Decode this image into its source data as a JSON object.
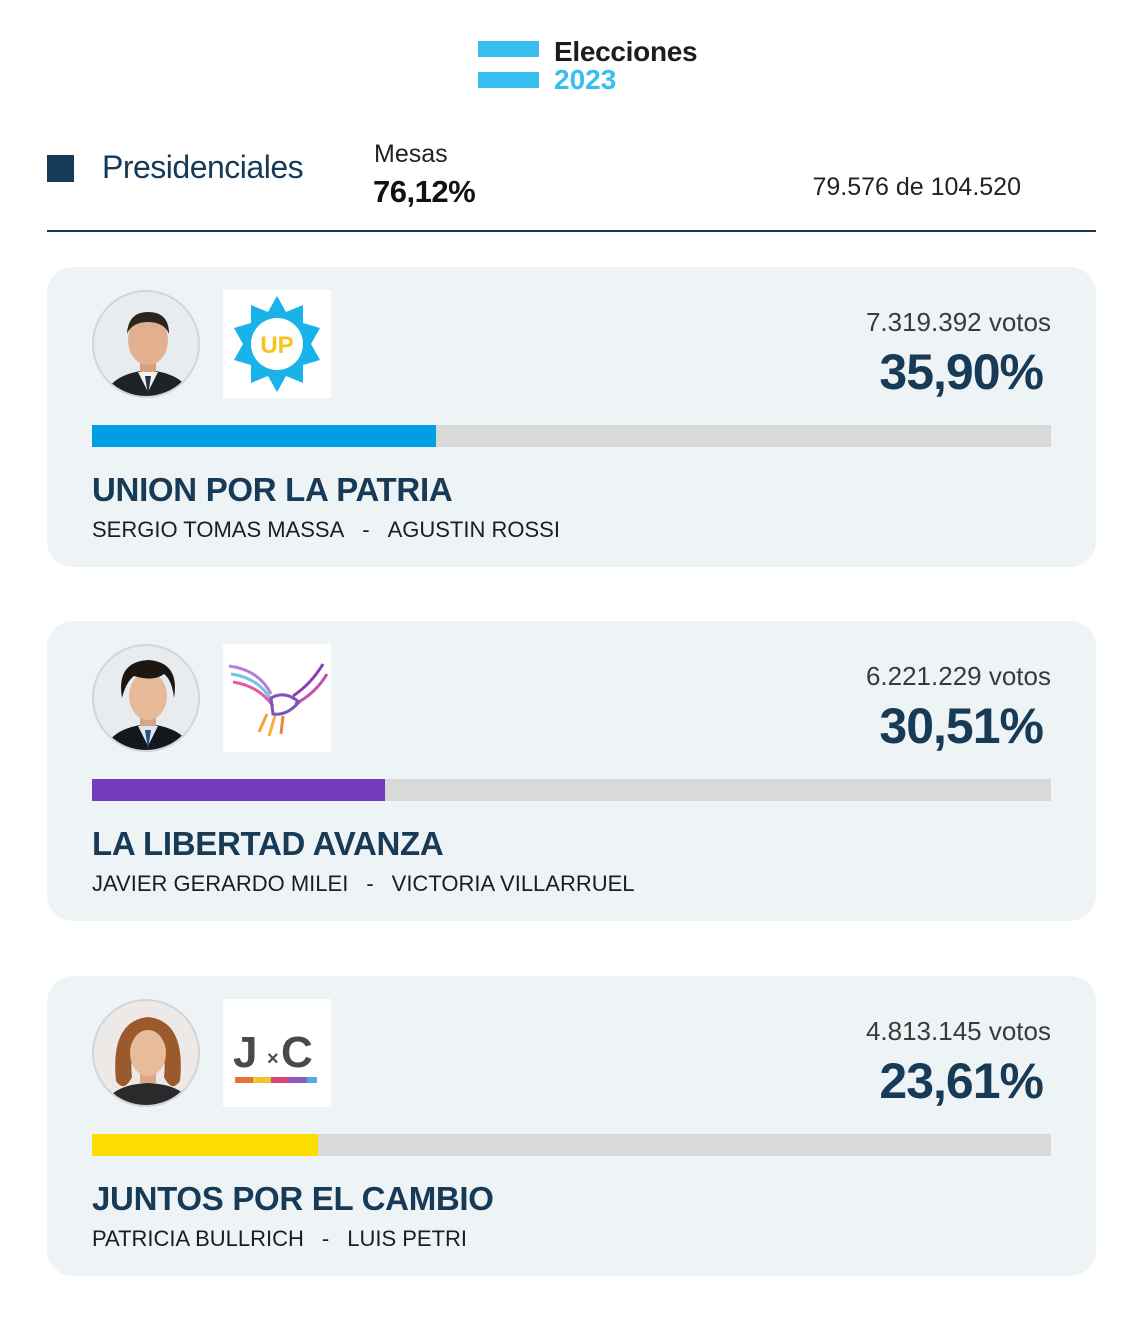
{
  "header": {
    "title": "Elecciones",
    "year": "2023",
    "flag_color": "#38bdf0"
  },
  "summary": {
    "section": "Presidenciales",
    "mesas_label": "Mesas",
    "mesas_percent": "76,12%",
    "mesas_count": "79.576 de 104.520"
  },
  "results": [
    {
      "party": "UNION POR LA PATRIA",
      "president": "SERGIO TOMAS MASSA",
      "separator": "-",
      "vice": "AGUSTIN ROSSI",
      "votes": "7.319.392 votos",
      "percent": "35,90%",
      "share": 0.359,
      "bar_color": "#009fe3",
      "logo_text": "UP"
    },
    {
      "party": "LA LIBERTAD AVANZA",
      "president": "JAVIER GERARDO MILEI",
      "separator": "-",
      "vice": "VICTORIA VILLARRUEL",
      "votes": "6.221.229 votos",
      "percent": "30,51%",
      "share": 0.3051,
      "bar_color": "#753bbd"
    },
    {
      "party": "JUNTOS POR EL CAMBIO",
      "president": "PATRICIA BULLRICH",
      "separator": "-",
      "vice": "LUIS PETRI",
      "votes": "4.813.145 votos",
      "percent": "23,61%",
      "share": 0.2361,
      "bar_color": "#fedd00",
      "logo_text_left": "J",
      "logo_text_mid": "×",
      "logo_text_right": "C"
    }
  ]
}
